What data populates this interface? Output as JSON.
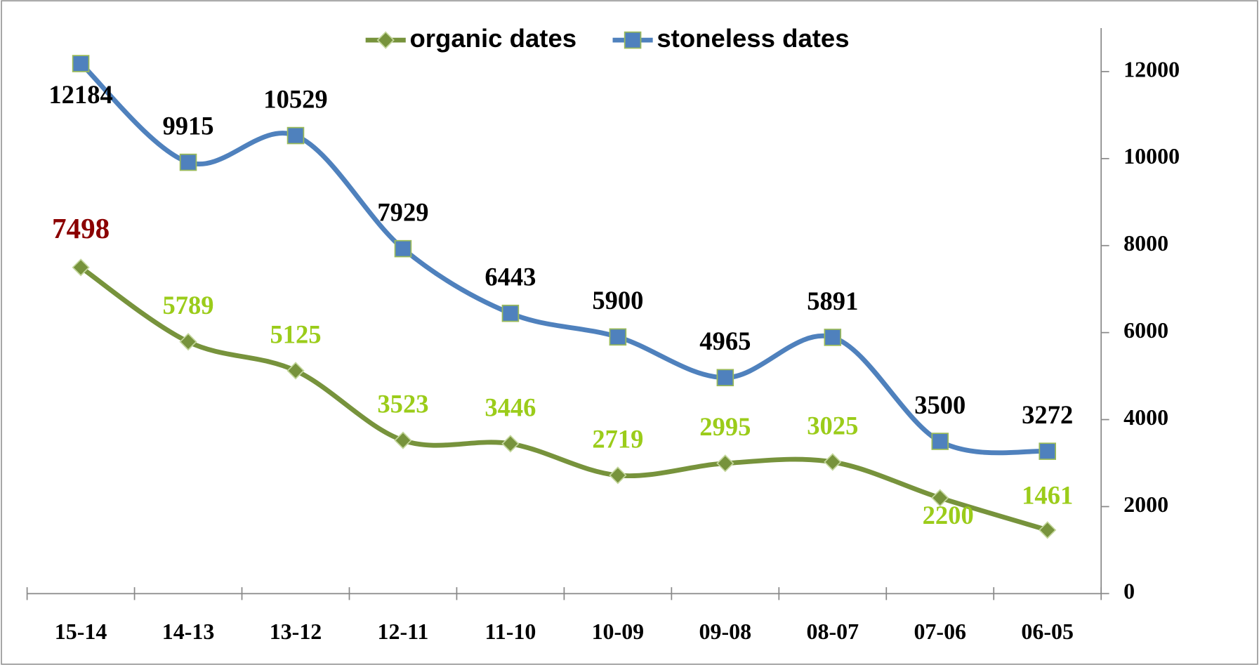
{
  "chart_data": {
    "type": "line",
    "categories": [
      "15-14",
      "14-13",
      "13-12",
      "12-11",
      "11-10",
      "10-09",
      "09-08",
      "08-07",
      "07-06",
      "06-05"
    ],
    "series": [
      {
        "name": "organic dates",
        "color": "#77933c",
        "marker": "diamond",
        "label_colors": [
          "#8b0000",
          "#9bcc1a",
          "#9bcc1a",
          "#9bcc1a",
          "#9bcc1a",
          "#9bcc1a",
          "#9bcc1a",
          "#9bcc1a",
          "#9bcc1a",
          "#9bcc1a"
        ],
        "values": [
          7498,
          5789,
          5125,
          3523,
          3446,
          2719,
          2995,
          3025,
          2200,
          1461
        ]
      },
      {
        "name": "stoneless dates",
        "color": "#4f81bd",
        "marker": "square",
        "label_colors": [
          "#000000",
          "#000000",
          "#000000",
          "#000000",
          "#000000",
          "#000000",
          "#000000",
          "#000000",
          "#000000",
          "#000000"
        ],
        "values": [
          12184,
          9915,
          10529,
          7929,
          6443,
          5900,
          4965,
          5891,
          3500,
          3272
        ]
      }
    ],
    "ylim": [
      0,
      13000
    ],
    "yticks": [
      0,
      2000,
      4000,
      6000,
      8000,
      10000,
      12000
    ],
    "y_axis_side": "right",
    "legend": "top",
    "smooth": true
  }
}
